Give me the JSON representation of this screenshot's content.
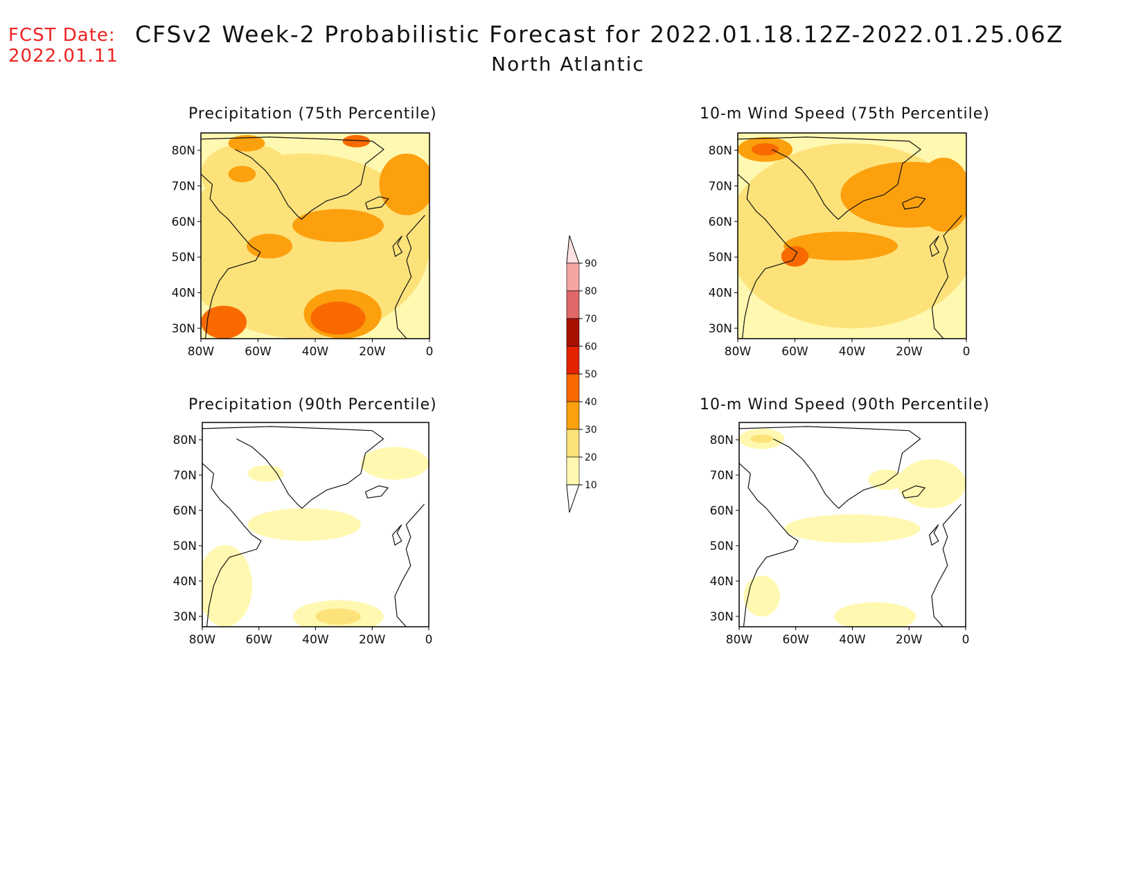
{
  "header": {
    "fcst_label": "FCST Date:",
    "fcst_date": "2022.01.11",
    "title": "CFSv2 Week-2 Probabilistic Forecast for 2022.01.18.12Z-2022.01.25.06Z",
    "subtitle": "North Atlantic"
  },
  "panels": [
    {
      "id": "precip-75",
      "title": "Precipitation (75th Percentile)",
      "intensity": "high"
    },
    {
      "id": "wind-75",
      "title": "10-m Wind Speed (75th Percentile)",
      "intensity": "high"
    },
    {
      "id": "precip-90",
      "title": "Precipitation (90th Percentile)",
      "intensity": "low"
    },
    {
      "id": "wind-90",
      "title": "10-m Wind Speed (90th Percentile)",
      "intensity": "low"
    }
  ],
  "axes": {
    "lat_labels": [
      "80N",
      "70N",
      "60N",
      "50N",
      "40N",
      "30N"
    ],
    "lon_labels": [
      "80W",
      "60W",
      "40W",
      "20W",
      "0"
    ]
  },
  "colorbar": {
    "levels": [
      "10",
      "20",
      "30",
      "40",
      "50",
      "60",
      "70",
      "80",
      "90"
    ],
    "colors": [
      "#fff8b0",
      "#fde27a",
      "#fca00e",
      "#f86a00",
      "#e52200",
      "#a81000",
      "#e06868",
      "#f5a4a4",
      "#fde0e0"
    ]
  }
}
